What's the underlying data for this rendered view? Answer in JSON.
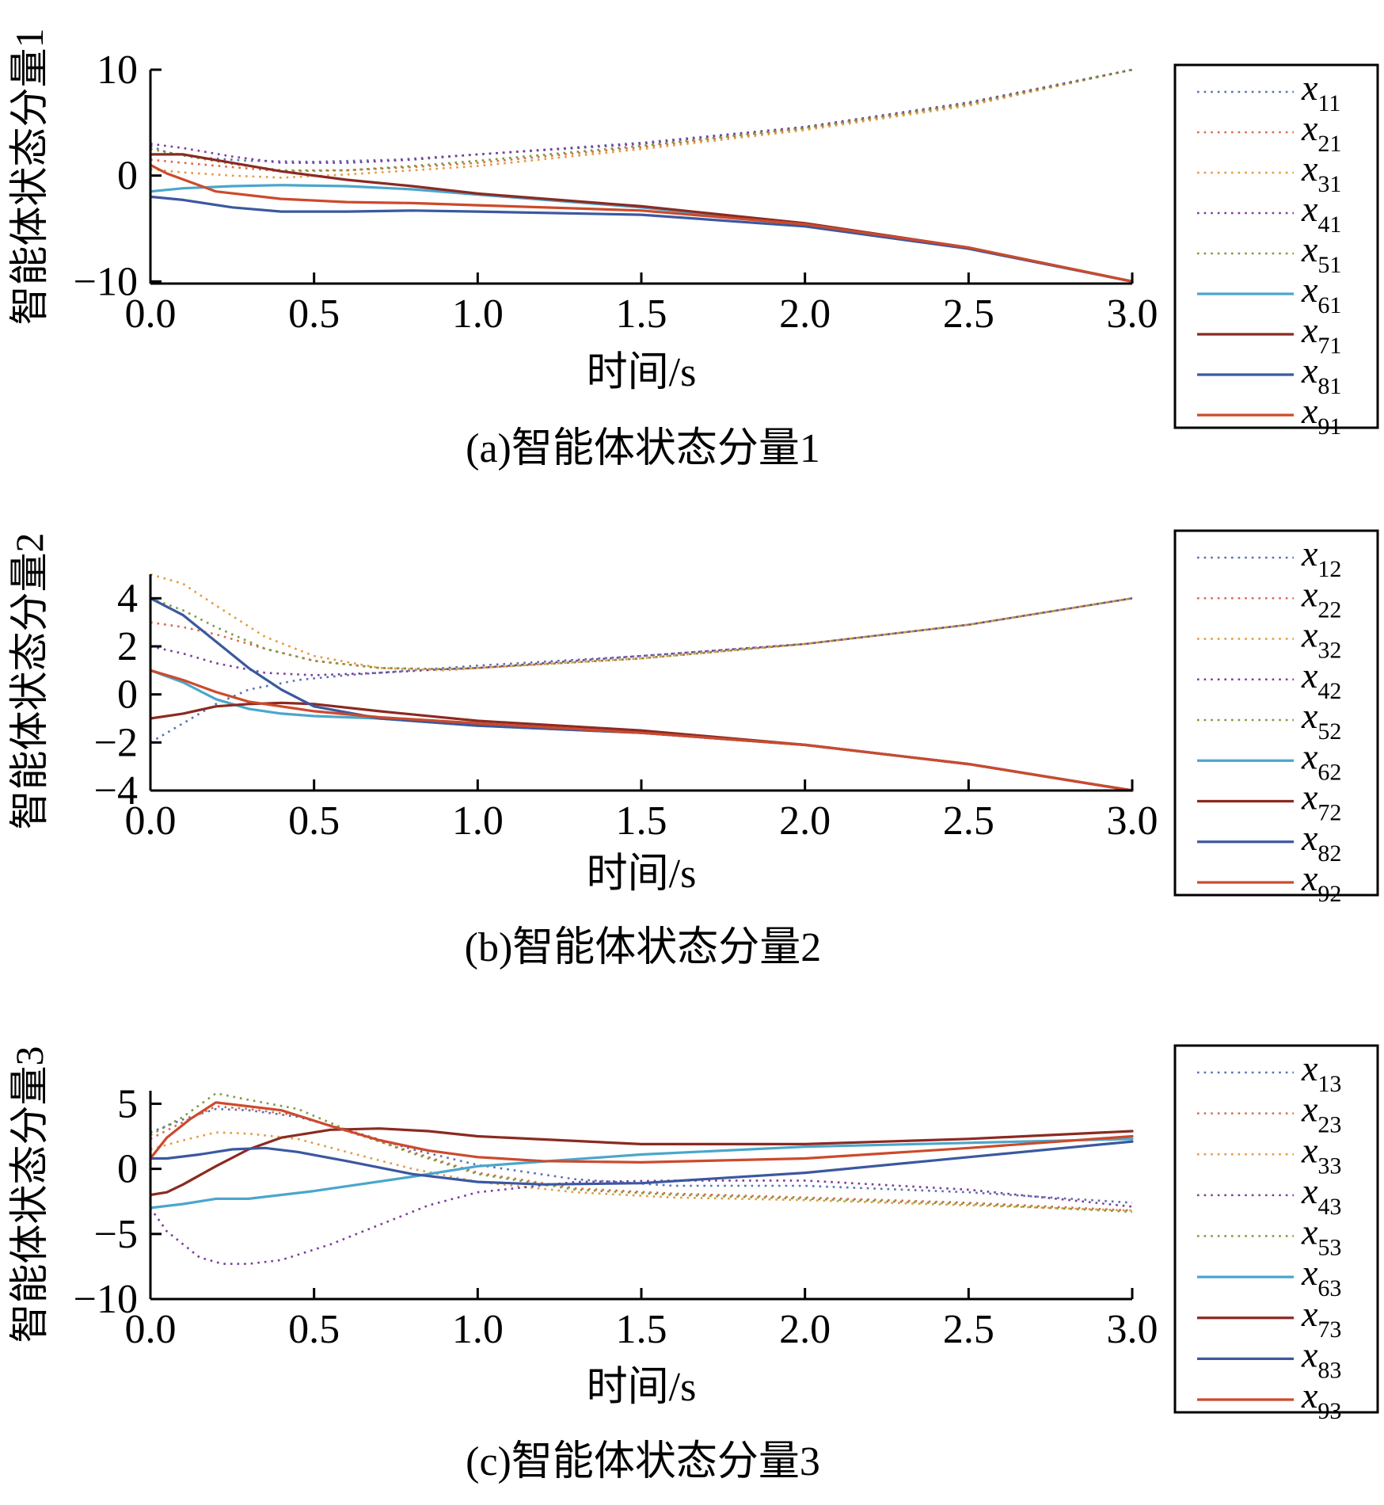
{
  "chart_data": [
    {
      "type": "line",
      "title": "",
      "caption": "(a)智能体状态分量1",
      "xlabel": "时间/s",
      "ylabel": "智能体状态分量1",
      "xlim": [
        0,
        3
      ],
      "ylim": [
        -10.2,
        10
      ],
      "xticks": [
        0,
        0.5,
        1,
        1.5,
        2,
        2.5,
        3
      ],
      "xtick_labels": [
        "0.0",
        "0.5",
        "1.0",
        "1.5",
        "2.0",
        "2.5",
        "3.0"
      ],
      "yticks": [
        -10,
        0,
        10
      ],
      "ytick_labels": [
        "−10",
        "0",
        "10"
      ],
      "grid": false,
      "legend": "right",
      "series": [
        {
          "name": "x11",
          "base": "x",
          "sub": "11",
          "style": "dotted",
          "color": "#5a6fb0",
          "x": [
            0,
            0.05,
            0.15,
            0.3,
            0.5,
            0.75,
            1,
            1.5,
            2,
            2.5,
            3
          ],
          "y": [
            2.8,
            2.2,
            1.7,
            1.4,
            1.3,
            1.5,
            2,
            3.1,
            4.6,
            6.9,
            10
          ]
        },
        {
          "name": "x21",
          "base": "x",
          "sub": "21",
          "style": "dotted",
          "color": "#d86a4c",
          "x": [
            0,
            0.1,
            0.25,
            0.4,
            0.6,
            0.8,
            1,
            1.5,
            2,
            2.5,
            3
          ],
          "y": [
            1.5,
            1.2,
            0.8,
            0.4,
            0.5,
            0.8,
            1.2,
            2.7,
            4.4,
            6.7,
            10
          ]
        },
        {
          "name": "x31",
          "base": "x",
          "sub": "31",
          "style": "dotted",
          "color": "#e29a3c",
          "x": [
            0,
            0.1,
            0.25,
            0.4,
            0.6,
            0.8,
            1,
            1.5,
            2,
            2.5,
            3
          ],
          "y": [
            0.6,
            0.3,
            0,
            -0.2,
            0.1,
            0.5,
            0.9,
            2.5,
            4.3,
            6.6,
            10
          ]
        },
        {
          "name": "x41",
          "base": "x",
          "sub": "41",
          "style": "dotted",
          "color": "#7b3c9a",
          "x": [
            0,
            0.1,
            0.25,
            0.4,
            0.6,
            0.8,
            1,
            1.5,
            2,
            2.5,
            3
          ],
          "y": [
            3,
            2.6,
            1.8,
            1.2,
            1.2,
            1.5,
            2,
            3,
            4.6,
            6.9,
            10
          ]
        },
        {
          "name": "x51",
          "base": "x",
          "sub": "51",
          "style": "dotted",
          "color": "#7a9a3a",
          "x": [
            0,
            0.1,
            0.25,
            0.4,
            0.6,
            0.8,
            1,
            1.5,
            2,
            2.5,
            3
          ],
          "y": [
            2.5,
            1.9,
            1.1,
            0.5,
            0.5,
            0.9,
            1.4,
            2.8,
            4.5,
            6.8,
            10
          ]
        },
        {
          "name": "x61",
          "base": "x",
          "sub": "61",
          "style": "solid",
          "color": "#4aa6cc",
          "x": [
            0,
            0.1,
            0.25,
            0.4,
            0.6,
            0.8,
            1,
            1.5,
            2,
            2.5,
            3
          ],
          "y": [
            -1.5,
            -1.2,
            -1,
            -0.9,
            -1,
            -1.3,
            -1.8,
            -3,
            -4.6,
            -6.9,
            -10
          ]
        },
        {
          "name": "x71",
          "base": "x",
          "sub": "71",
          "style": "solid",
          "color": "#8b2a22",
          "x": [
            0,
            0.1,
            0.25,
            0.4,
            0.6,
            0.8,
            1,
            1.5,
            2,
            2.5,
            3
          ],
          "y": [
            2,
            2,
            1.2,
            0.4,
            -0.4,
            -1,
            -1.7,
            -2.9,
            -4.5,
            -6.8,
            -10
          ]
        },
        {
          "name": "x81",
          "base": "x",
          "sub": "81",
          "style": "solid",
          "color": "#3b58a0",
          "x": [
            0,
            0.1,
            0.25,
            0.4,
            0.6,
            0.8,
            1,
            1.5,
            2,
            2.5,
            3
          ],
          "y": [
            -2,
            -2.3,
            -3,
            -3.4,
            -3.4,
            -3.3,
            -3.4,
            -3.7,
            -4.8,
            -6.9,
            -10
          ]
        },
        {
          "name": "x91",
          "base": "x",
          "sub": "91",
          "style": "solid",
          "color": "#cc4a2c",
          "x": [
            0,
            0.05,
            0.2,
            0.4,
            0.6,
            0.8,
            1,
            1.5,
            2,
            2.5,
            3
          ],
          "y": [
            1,
            0.2,
            -1.5,
            -2.2,
            -2.5,
            -2.6,
            -2.8,
            -3.3,
            -4.6,
            -6.8,
            -10
          ]
        }
      ]
    },
    {
      "type": "line",
      "title": "",
      "caption": "(b)智能体状态分量2",
      "xlabel": "时间/s",
      "ylabel": "智能体状态分量2",
      "xlim": [
        0,
        3
      ],
      "ylim": [
        -4,
        5
      ],
      "xticks": [
        0,
        0.5,
        1,
        1.5,
        2,
        2.5,
        3
      ],
      "xtick_labels": [
        "0.0",
        "0.5",
        "1.0",
        "1.5",
        "2.0",
        "2.5",
        "3.0"
      ],
      "yticks": [
        -4,
        -2,
        0,
        2,
        4
      ],
      "ytick_labels": [
        "−4",
        "−2",
        "0",
        "2",
        "4"
      ],
      "grid": false,
      "legend": "right",
      "series": [
        {
          "name": "x12",
          "base": "x",
          "sub": "12",
          "style": "dotted",
          "color": "#5a6fb0",
          "x": [
            0,
            0.1,
            0.2,
            0.3,
            0.45,
            0.6,
            0.8,
            1,
            1.5,
            2,
            2.5,
            3
          ],
          "y": [
            -2,
            -1.2,
            -0.4,
            0.2,
            0.6,
            0.8,
            1,
            1.2,
            1.6,
            2.1,
            2.9,
            4
          ]
        },
        {
          "name": "x22",
          "base": "x",
          "sub": "22",
          "style": "dotted",
          "color": "#d86a4c",
          "x": [
            0,
            0.1,
            0.2,
            0.35,
            0.5,
            0.7,
            0.9,
            1,
            1.5,
            2,
            2.5,
            3
          ],
          "y": [
            3,
            2.8,
            2.5,
            1.9,
            1.4,
            1.1,
            1.05,
            1.1,
            1.5,
            2.1,
            2.9,
            4
          ]
        },
        {
          "name": "x32",
          "base": "x",
          "sub": "32",
          "style": "dotted",
          "color": "#e29a3c",
          "x": [
            0,
            0.1,
            0.2,
            0.35,
            0.5,
            0.7,
            0.9,
            1,
            1.5,
            2,
            2.5,
            3
          ],
          "y": [
            5,
            4.6,
            3.7,
            2.4,
            1.6,
            1.1,
            1,
            1.1,
            1.5,
            2.1,
            2.9,
            4
          ]
        },
        {
          "name": "x42",
          "base": "x",
          "sub": "42",
          "style": "dotted",
          "color": "#7b3c9a",
          "x": [
            0,
            0.1,
            0.2,
            0.35,
            0.5,
            0.7,
            0.9,
            1,
            1.5,
            2,
            2.5,
            3
          ],
          "y": [
            2,
            1.7,
            1.3,
            0.9,
            0.8,
            0.9,
            1.05,
            1.1,
            1.6,
            2.1,
            2.9,
            4
          ]
        },
        {
          "name": "x52",
          "base": "x",
          "sub": "52",
          "style": "dotted",
          "color": "#7a9a3a",
          "x": [
            0,
            0.1,
            0.2,
            0.35,
            0.5,
            0.7,
            0.9,
            1,
            1.5,
            2,
            2.5,
            3
          ],
          "y": [
            4,
            3.5,
            2.8,
            1.9,
            1.4,
            1.1,
            1.05,
            1.1,
            1.5,
            2.1,
            2.9,
            4
          ]
        },
        {
          "name": "x62",
          "base": "x",
          "sub": "62",
          "style": "solid",
          "color": "#4aa6cc",
          "x": [
            0,
            0.1,
            0.2,
            0.3,
            0.4,
            0.5,
            0.7,
            1,
            1.5,
            2,
            2.5,
            3
          ],
          "y": [
            1,
            0.5,
            -0.2,
            -0.6,
            -0.8,
            -0.9,
            -1,
            -1.3,
            -1.6,
            -2.1,
            -2.9,
            -4
          ]
        },
        {
          "name": "x72",
          "base": "x",
          "sub": "72",
          "style": "solid",
          "color": "#8b2a22",
          "x": [
            0,
            0.1,
            0.2,
            0.3,
            0.4,
            0.5,
            0.7,
            1,
            1.5,
            2,
            2.5,
            3
          ],
          "y": [
            -1,
            -0.8,
            -0.5,
            -0.4,
            -0.35,
            -0.4,
            -0.7,
            -1.1,
            -1.5,
            -2.1,
            -2.9,
            -4
          ]
        },
        {
          "name": "x82",
          "base": "x",
          "sub": "82",
          "style": "solid",
          "color": "#3b58a0",
          "x": [
            0,
            0.1,
            0.2,
            0.3,
            0.4,
            0.5,
            0.7,
            1,
            1.5,
            2,
            2.5,
            3
          ],
          "y": [
            4,
            3.3,
            2.2,
            1.1,
            0.2,
            -0.5,
            -1,
            -1.3,
            -1.6,
            -2.1,
            -2.9,
            -4
          ]
        },
        {
          "name": "x92",
          "base": "x",
          "sub": "92",
          "style": "solid",
          "color": "#cc4a2c",
          "x": [
            0,
            0.1,
            0.2,
            0.3,
            0.4,
            0.5,
            0.7,
            1,
            1.5,
            2,
            2.5,
            3
          ],
          "y": [
            1,
            0.6,
            0.1,
            -0.3,
            -0.5,
            -0.7,
            -0.95,
            -1.2,
            -1.6,
            -2.1,
            -2.9,
            -4
          ]
        }
      ]
    },
    {
      "type": "line",
      "title": "",
      "caption": "(c)智能体状态分量3",
      "xlabel": "时间/s",
      "ylabel": "智能体状态分量3",
      "xlim": [
        0,
        3
      ],
      "ylim": [
        -10,
        6
      ],
      "xticks": [
        0,
        0.5,
        1,
        1.5,
        2,
        2.5,
        3
      ],
      "xtick_labels": [
        "0.0",
        "0.5",
        "1.0",
        "1.5",
        "2.0",
        "2.5",
        "3.0"
      ],
      "yticks": [
        -10,
        -5,
        0,
        5
      ],
      "ytick_labels": [
        "−10",
        "−5",
        "0",
        "5"
      ],
      "grid": false,
      "legend": "right",
      "series": [
        {
          "name": "x13",
          "base": "x",
          "sub": "13",
          "style": "dotted",
          "color": "#5a6fb0",
          "x": [
            0,
            0.1,
            0.2,
            0.3,
            0.45,
            0.6,
            0.8,
            1,
            1.3,
            1.6,
            2,
            2.5,
            3
          ],
          "y": [
            2.8,
            3.8,
            4.6,
            4.5,
            4,
            3,
            1.5,
            0.3,
            -0.8,
            -1.3,
            -1.3,
            -1.8,
            -2.6
          ]
        },
        {
          "name": "x23",
          "base": "x",
          "sub": "23",
          "style": "dotted",
          "color": "#d86a4c",
          "x": [
            0,
            0.1,
            0.2,
            0.3,
            0.45,
            0.6,
            0.8,
            1,
            1.3,
            1.6,
            2,
            2.5,
            3
          ],
          "y": [
            2.3,
            3.6,
            4.8,
            4.6,
            4.1,
            2.9,
            1.3,
            -0.3,
            -1.5,
            -1.9,
            -2.2,
            -2.6,
            -3.2
          ]
        },
        {
          "name": "x33",
          "base": "x",
          "sub": "33",
          "style": "dotted",
          "color": "#e29a3c",
          "x": [
            0,
            0.1,
            0.2,
            0.3,
            0.45,
            0.6,
            0.8,
            1,
            1.3,
            1.6,
            2,
            2.5,
            3
          ],
          "y": [
            1.5,
            2.2,
            2.8,
            2.7,
            2.3,
            1.3,
            0,
            -1,
            -1.8,
            -2.2,
            -2.4,
            -2.8,
            -3.2
          ]
        },
        {
          "name": "x43",
          "base": "x",
          "sub": "43",
          "style": "dotted",
          "color": "#7b3c9a",
          "x": [
            0,
            0.05,
            0.15,
            0.22,
            0.3,
            0.4,
            0.55,
            0.7,
            0.85,
            1,
            1.3,
            1.6,
            2,
            2.5,
            3
          ],
          "y": [
            -3,
            -4.8,
            -6.8,
            -7.3,
            -7.3,
            -7,
            -5.8,
            -4.3,
            -2.8,
            -1.8,
            -1,
            -0.9,
            -0.9,
            -1.6,
            -2.9
          ]
        },
        {
          "name": "x53",
          "base": "x",
          "sub": "53",
          "style": "dotted",
          "color": "#7a9a3a",
          "x": [
            0,
            0.1,
            0.2,
            0.3,
            0.45,
            0.6,
            0.8,
            1,
            1.3,
            1.6,
            2,
            2.5,
            3
          ],
          "y": [
            2.6,
            4,
            5.8,
            5.3,
            4.6,
            3,
            1.2,
            -0.4,
            -1.6,
            -2,
            -2.3,
            -2.7,
            -3.3
          ]
        },
        {
          "name": "x63",
          "base": "x",
          "sub": "63",
          "style": "solid",
          "color": "#4aa6cc",
          "x": [
            0,
            0.1,
            0.2,
            0.3,
            0.5,
            0.8,
            1,
            1.5,
            2,
            2.5,
            3
          ],
          "y": [
            -3,
            -2.7,
            -2.3,
            -2.3,
            -1.7,
            -0.6,
            0.2,
            1.1,
            1.7,
            2,
            2.3
          ]
        },
        {
          "name": "x73",
          "base": "x",
          "sub": "73",
          "style": "solid",
          "color": "#8b2a22",
          "x": [
            0,
            0.05,
            0.1,
            0.2,
            0.3,
            0.4,
            0.55,
            0.7,
            0.85,
            1,
            1.5,
            2,
            2.5,
            3
          ],
          "y": [
            -2,
            -1.8,
            -1.2,
            0.2,
            1.5,
            2.4,
            3,
            3.1,
            2.9,
            2.5,
            1.9,
            1.9,
            2.3,
            2.9
          ]
        },
        {
          "name": "x83",
          "base": "x",
          "sub": "83",
          "style": "solid",
          "color": "#3b58a0",
          "x": [
            0,
            0.05,
            0.15,
            0.25,
            0.35,
            0.45,
            0.6,
            0.8,
            1,
            1.2,
            1.5,
            2,
            2.5,
            3
          ],
          "y": [
            0.8,
            0.8,
            1.1,
            1.5,
            1.6,
            1.3,
            0.6,
            -0.4,
            -1,
            -1.2,
            -1.1,
            -0.3,
            0.9,
            2.1
          ]
        },
        {
          "name": "x93",
          "base": "x",
          "sub": "93",
          "style": "solid",
          "color": "#cc4a2c",
          "x": [
            0,
            0.05,
            0.12,
            0.2,
            0.3,
            0.4,
            0.55,
            0.7,
            0.85,
            1,
            1.2,
            1.5,
            2,
            2.5,
            3
          ],
          "y": [
            0.8,
            2.4,
            3.8,
            5.1,
            4.8,
            4.5,
            3.3,
            2.2,
            1.4,
            0.9,
            0.6,
            0.5,
            0.8,
            1.6,
            2.5
          ]
        }
      ]
    }
  ]
}
